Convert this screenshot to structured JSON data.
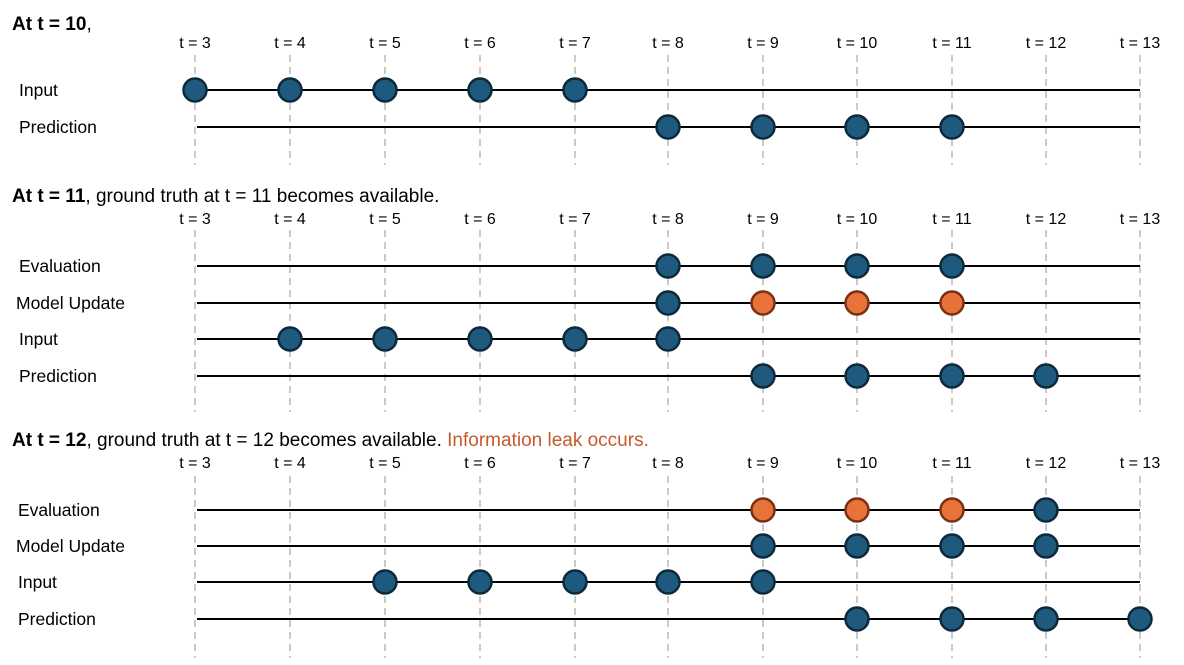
{
  "colors": {
    "blue": "#1f5a7e",
    "orange": "#e8733a",
    "leak": "#c55a2b",
    "stroke": "#0c2a3c",
    "orange_stroke": "#7a3012",
    "line": "#000000",
    "dash": "#b9b9b9"
  },
  "time_labels": [
    "t = 3",
    "t = 4",
    "t = 5",
    "t = 6",
    "t = 7",
    "t = 8",
    "t = 9",
    "t = 10",
    "t = 11",
    "t = 12",
    "t = 13"
  ],
  "panels": [
    {
      "header_bold": "At t = 10",
      "header_rest": ",",
      "header_leak": "",
      "rows": [
        {
          "label": "Input",
          "nodes": [
            {
              "t": 3,
              "c": "blue"
            },
            {
              "t": 4,
              "c": "blue"
            },
            {
              "t": 5,
              "c": "blue"
            },
            {
              "t": 6,
              "c": "blue"
            },
            {
              "t": 7,
              "c": "blue"
            }
          ]
        },
        {
          "label": "Prediction",
          "nodes": [
            {
              "t": 8,
              "c": "blue"
            },
            {
              "t": 9,
              "c": "blue"
            },
            {
              "t": 10,
              "c": "blue"
            },
            {
              "t": 11,
              "c": "blue"
            }
          ]
        }
      ]
    },
    {
      "header_bold": "At t = 11",
      "header_rest": ", ground truth at t = 11 becomes available.",
      "header_leak": "",
      "rows": [
        {
          "label": "Evaluation",
          "nodes": [
            {
              "t": 8,
              "c": "blue"
            },
            {
              "t": 9,
              "c": "blue"
            },
            {
              "t": 10,
              "c": "blue"
            },
            {
              "t": 11,
              "c": "blue"
            }
          ]
        },
        {
          "label": "Model Update",
          "nodes": [
            {
              "t": 8,
              "c": "blue"
            },
            {
              "t": 9,
              "c": "orange"
            },
            {
              "t": 10,
              "c": "orange"
            },
            {
              "t": 11,
              "c": "orange"
            }
          ]
        },
        {
          "label": "Input",
          "nodes": [
            {
              "t": 4,
              "c": "blue"
            },
            {
              "t": 5,
              "c": "blue"
            },
            {
              "t": 6,
              "c": "blue"
            },
            {
              "t": 7,
              "c": "blue"
            },
            {
              "t": 8,
              "c": "blue"
            }
          ]
        },
        {
          "label": "Prediction",
          "nodes": [
            {
              "t": 9,
              "c": "blue"
            },
            {
              "t": 10,
              "c": "blue"
            },
            {
              "t": 11,
              "c": "blue"
            },
            {
              "t": 12,
              "c": "blue"
            }
          ]
        }
      ]
    },
    {
      "header_bold": "At t = 12",
      "header_rest": ", ground truth at t = 12 becomes available. ",
      "header_leak": "Information leak occurs.",
      "rows": [
        {
          "label": "Evaluation",
          "nodes": [
            {
              "t": 9,
              "c": "orange"
            },
            {
              "t": 10,
              "c": "orange"
            },
            {
              "t": 11,
              "c": "orange"
            },
            {
              "t": 12,
              "c": "blue"
            }
          ]
        },
        {
          "label": "Model Update",
          "nodes": [
            {
              "t": 9,
              "c": "blue"
            },
            {
              "t": 10,
              "c": "blue"
            },
            {
              "t": 11,
              "c": "blue"
            },
            {
              "t": 12,
              "c": "blue"
            }
          ]
        },
        {
          "label": "Input",
          "nodes": [
            {
              "t": 5,
              "c": "blue"
            },
            {
              "t": 6,
              "c": "blue"
            },
            {
              "t": 7,
              "c": "blue"
            },
            {
              "t": 8,
              "c": "blue"
            },
            {
              "t": 9,
              "c": "blue"
            }
          ]
        },
        {
          "label": "Prediction",
          "nodes": [
            {
              "t": 10,
              "c": "blue"
            },
            {
              "t": 11,
              "c": "blue"
            },
            {
              "t": 12,
              "c": "blue"
            },
            {
              "t": 13,
              "c": "blue"
            }
          ]
        }
      ]
    }
  ]
}
